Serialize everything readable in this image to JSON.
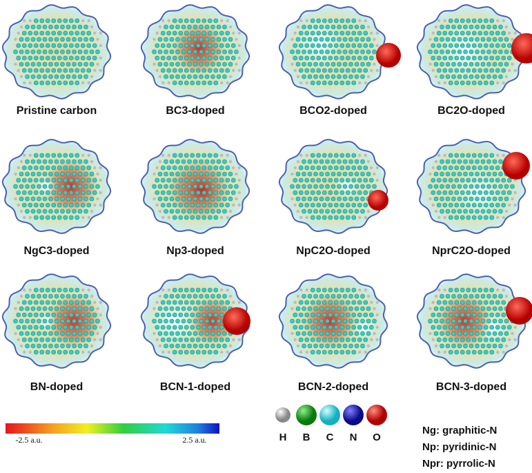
{
  "panels": [
    {
      "label": "Pristine carbon"
    },
    {
      "label": "BC3-doped"
    },
    {
      "label": "BCO2-doped"
    },
    {
      "label": "BC2O-doped"
    },
    {
      "label": "NgC3-doped"
    },
    {
      "label": "Np3-doped"
    },
    {
      "label": "NpC2O-doped"
    },
    {
      "label": "NprC2O-doped"
    },
    {
      "label": "BN-doped"
    },
    {
      "label": "BCN-1-doped"
    },
    {
      "label": "BCN-2-doped"
    },
    {
      "label": "BCN-3-doped"
    }
  ],
  "colorbar": {
    "min_label": "-2.5 a.u.",
    "max_label": "2.5 a.u."
  },
  "atoms": [
    "H",
    "B",
    "C",
    "N",
    "O"
  ],
  "abbreviations": [
    "Ng: graphitic-N",
    "Np: pyridinic-N",
    "Npr: pyrrolic-N"
  ]
}
